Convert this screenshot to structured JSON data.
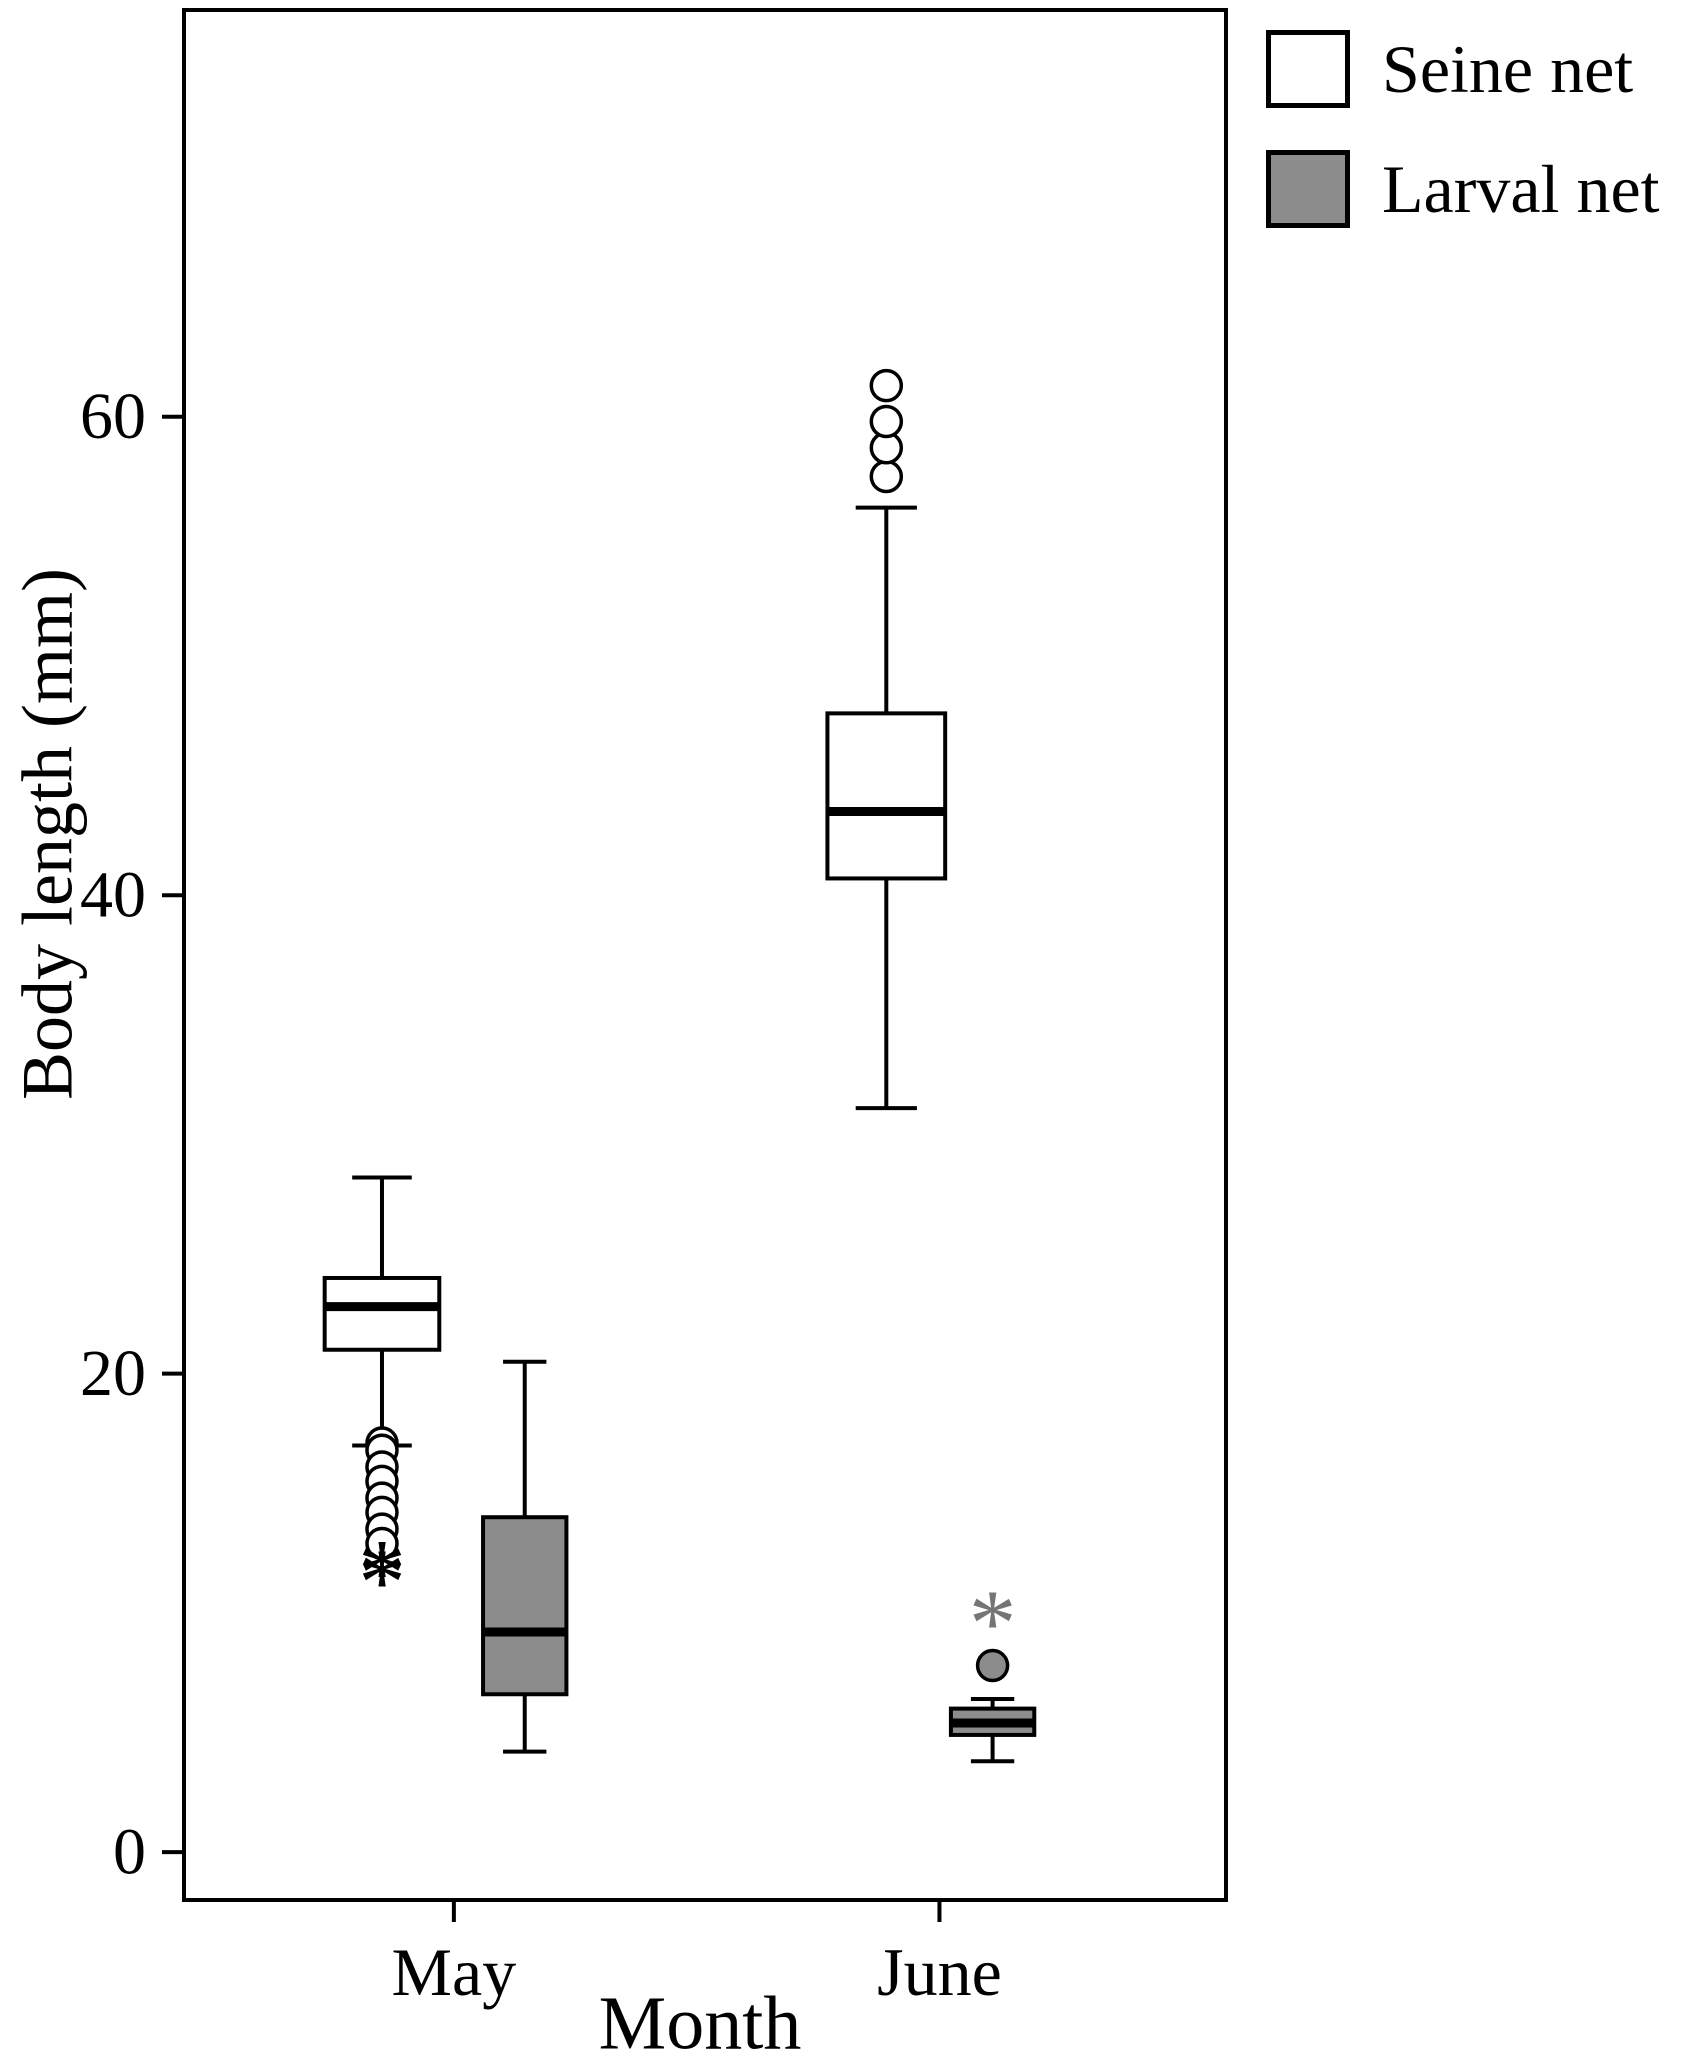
{
  "legend": {
    "items": [
      {
        "label": "Seine net",
        "fill": "#ffffff"
      },
      {
        "label": "Larval net",
        "fill": "#8c8c8c"
      }
    ]
  },
  "chart_data": {
    "type": "boxplot",
    "title": "",
    "xlabel": "Month",
    "ylabel": "Body length (mm)",
    "categories": [
      "May",
      "June"
    ],
    "category_tick_positions": [
      0.259,
      0.725
    ],
    "yticks": [
      0,
      20,
      40,
      60
    ],
    "ylim": [
      -2,
      77
    ],
    "grid": false,
    "legend_position": "top-right-outside",
    "colors": {
      "seine_net": "#ffffff",
      "larval_net": "#8c8c8c",
      "stroke": "#000000"
    },
    "series": [
      "Seine net",
      "Larval net"
    ],
    "boxes": [
      {
        "series": "Seine net",
        "category": "May",
        "x_frac": 0.19,
        "width_frac": 0.11,
        "fill": "#ffffff",
        "whisker_low": 17.0,
        "q1": 21.0,
        "median": 22.8,
        "q3": 24.0,
        "whisker_high": 28.2,
        "outliers": [
          {
            "value": 17.1,
            "marker": "circle"
          },
          {
            "value": 16.8,
            "marker": "circle"
          },
          {
            "value": 16.1,
            "marker": "circle"
          },
          {
            "value": 15.5,
            "marker": "circle"
          },
          {
            "value": 14.8,
            "marker": "circle"
          },
          {
            "value": 14.2,
            "marker": "circle"
          },
          {
            "value": 13.5,
            "marker": "circle"
          },
          {
            "value": 12.9,
            "marker": "circle"
          },
          {
            "value": 12.1,
            "marker": "asterisk",
            "color": "#000000"
          },
          {
            "value": 11.7,
            "marker": "asterisk",
            "color": "#000000"
          }
        ]
      },
      {
        "series": "Larval net",
        "category": "May",
        "x_frac": 0.327,
        "width_frac": 0.08,
        "fill": "#8c8c8c",
        "whisker_low": 4.2,
        "q1": 6.6,
        "median": 9.2,
        "q3": 14.0,
        "whisker_high": 20.5,
        "outliers": []
      },
      {
        "series": "Seine net",
        "category": "June",
        "x_frac": 0.674,
        "width_frac": 0.113,
        "fill": "#ffffff",
        "whisker_low": 31.1,
        "q1": 40.7,
        "median": 43.5,
        "q3": 47.6,
        "whisker_high": 56.2,
        "outliers": [
          {
            "value": 57.5,
            "marker": "circle"
          },
          {
            "value": 58.7,
            "marker": "circle"
          },
          {
            "value": 59.8,
            "marker": "circle"
          },
          {
            "value": 61.3,
            "marker": "circle"
          }
        ]
      },
      {
        "series": "Larval net",
        "category": "June",
        "x_frac": 0.776,
        "width_frac": 0.08,
        "fill": "#8c8c8c",
        "whisker_low": 3.8,
        "q1": 4.9,
        "median": 5.4,
        "q3": 6.0,
        "whisker_high": 6.4,
        "outliers": [
          {
            "value": 7.8,
            "marker": "circle-filled",
            "fill": "#8c8c8c"
          },
          {
            "value": 10.0,
            "marker": "asterisk",
            "color": "#757575"
          }
        ]
      }
    ]
  }
}
